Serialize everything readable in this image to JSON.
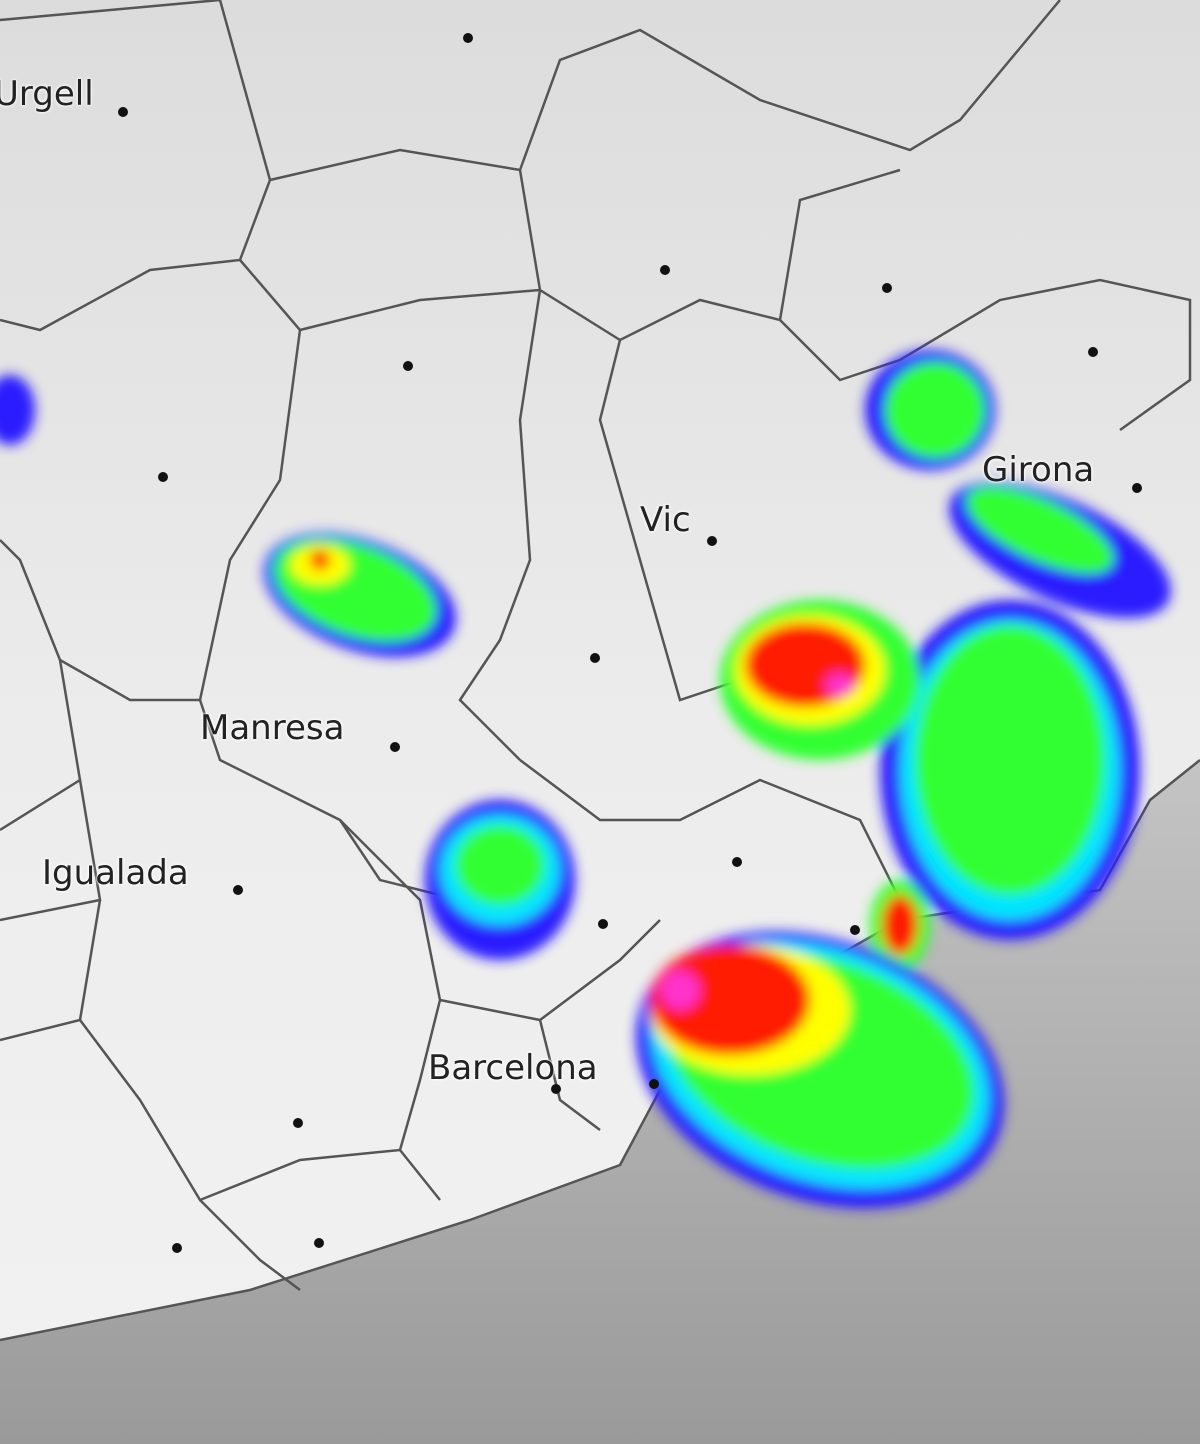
{
  "map": {
    "type": "weather radar composite over grayscale relief",
    "colors": {
      "land": "#e6e6e6",
      "sea": "#a9a9a9",
      "border": "#555555",
      "weak": "#2a1aff",
      "light": "#00e5ff",
      "moderate": "#33ff33",
      "strong": "#ffff00",
      "heavy": "#ff1a00",
      "extreme": "#ff33cc"
    },
    "places": [
      {
        "name": "Urgell"
      },
      {
        "name": "Vic"
      },
      {
        "name": "Girona"
      },
      {
        "name": "Manresa"
      },
      {
        "name": "Igualada"
      },
      {
        "name": "Barcelona"
      }
    ]
  }
}
